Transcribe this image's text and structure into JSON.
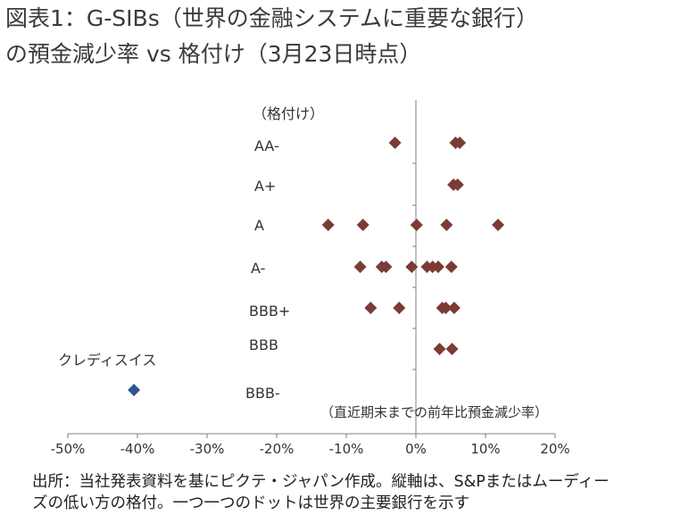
{
  "title_line1": "図表1：G-SIBs（世界の金融システムに重要な銀行）",
  "title_line2": "の預金減少率 vs 格付け（3月23日時点）",
  "source_line1": "出所：当社発表資料を基にピクテ・ジャパン作成。縦軸は、S&Pまたはムーディー",
  "source_line2": "ズの低い方の格付。一つ一つのドットは世界の主要銀行を示す",
  "colors": {
    "main": "#7b3b35",
    "highlight": "#2d5593",
    "axis": "#808080"
  },
  "chart_data": {
    "type": "scatter",
    "title": "G-SIBs（世界の金融システムに重要な銀行）の預金減少率 vs 格付け（3月23日時点）",
    "xlabel": "（直近期末までの前年比預金減少率）",
    "ylabel": "（格付け）",
    "x_unit": "%",
    "xlim": [
      -50,
      20
    ],
    "x_ticks": [
      -50,
      -40,
      -30,
      -20,
      -10,
      0,
      10,
      20
    ],
    "x_tick_labels": [
      "-50%",
      "-40%",
      "-30%",
      "-20%",
      "-10%",
      "0%",
      "10%",
      "20%"
    ],
    "categories": [
      "AA-",
      "A+",
      "A",
      "A-",
      "BBB+",
      "BBB",
      "BBB-"
    ],
    "grid": false,
    "series": [
      {
        "name": "",
        "color": "#7b3b35",
        "points": [
          {
            "rating": "AA-",
            "x": -3.0
          },
          {
            "rating": "AA-",
            "x": 5.7
          },
          {
            "rating": "AA-",
            "x": 6.3
          },
          {
            "rating": "A+",
            "x": 5.4
          },
          {
            "rating": "A+",
            "x": 6.0
          },
          {
            "rating": "A",
            "x": -12.6
          },
          {
            "rating": "A",
            "x": -7.6
          },
          {
            "rating": "A",
            "x": 0.1
          },
          {
            "rating": "A",
            "x": 4.4
          },
          {
            "rating": "A",
            "x": 11.8
          },
          {
            "rating": "A-",
            "x": -8.0
          },
          {
            "rating": "A-",
            "x": -4.9
          },
          {
            "rating": "A-",
            "x": -4.3
          },
          {
            "rating": "A-",
            "x": -0.6
          },
          {
            "rating": "A-",
            "x": 1.6
          },
          {
            "rating": "A-",
            "x": 2.4
          },
          {
            "rating": "A-",
            "x": 3.2
          },
          {
            "rating": "A-",
            "x": 5.1
          },
          {
            "rating": "BBB+",
            "x": -6.5
          },
          {
            "rating": "BBB+",
            "x": -2.4
          },
          {
            "rating": "BBB+",
            "x": 3.8
          },
          {
            "rating": "BBB+",
            "x": 4.3
          },
          {
            "rating": "BBB+",
            "x": 5.5
          },
          {
            "rating": "BBB",
            "x": 3.4
          },
          {
            "rating": "BBB",
            "x": 5.2
          }
        ]
      },
      {
        "name": "クレディスイス",
        "color": "#2d5593",
        "points": [
          {
            "rating": "BBB-",
            "x": -40.5
          }
        ]
      }
    ],
    "annotations": [
      "クレディスイス"
    ]
  }
}
